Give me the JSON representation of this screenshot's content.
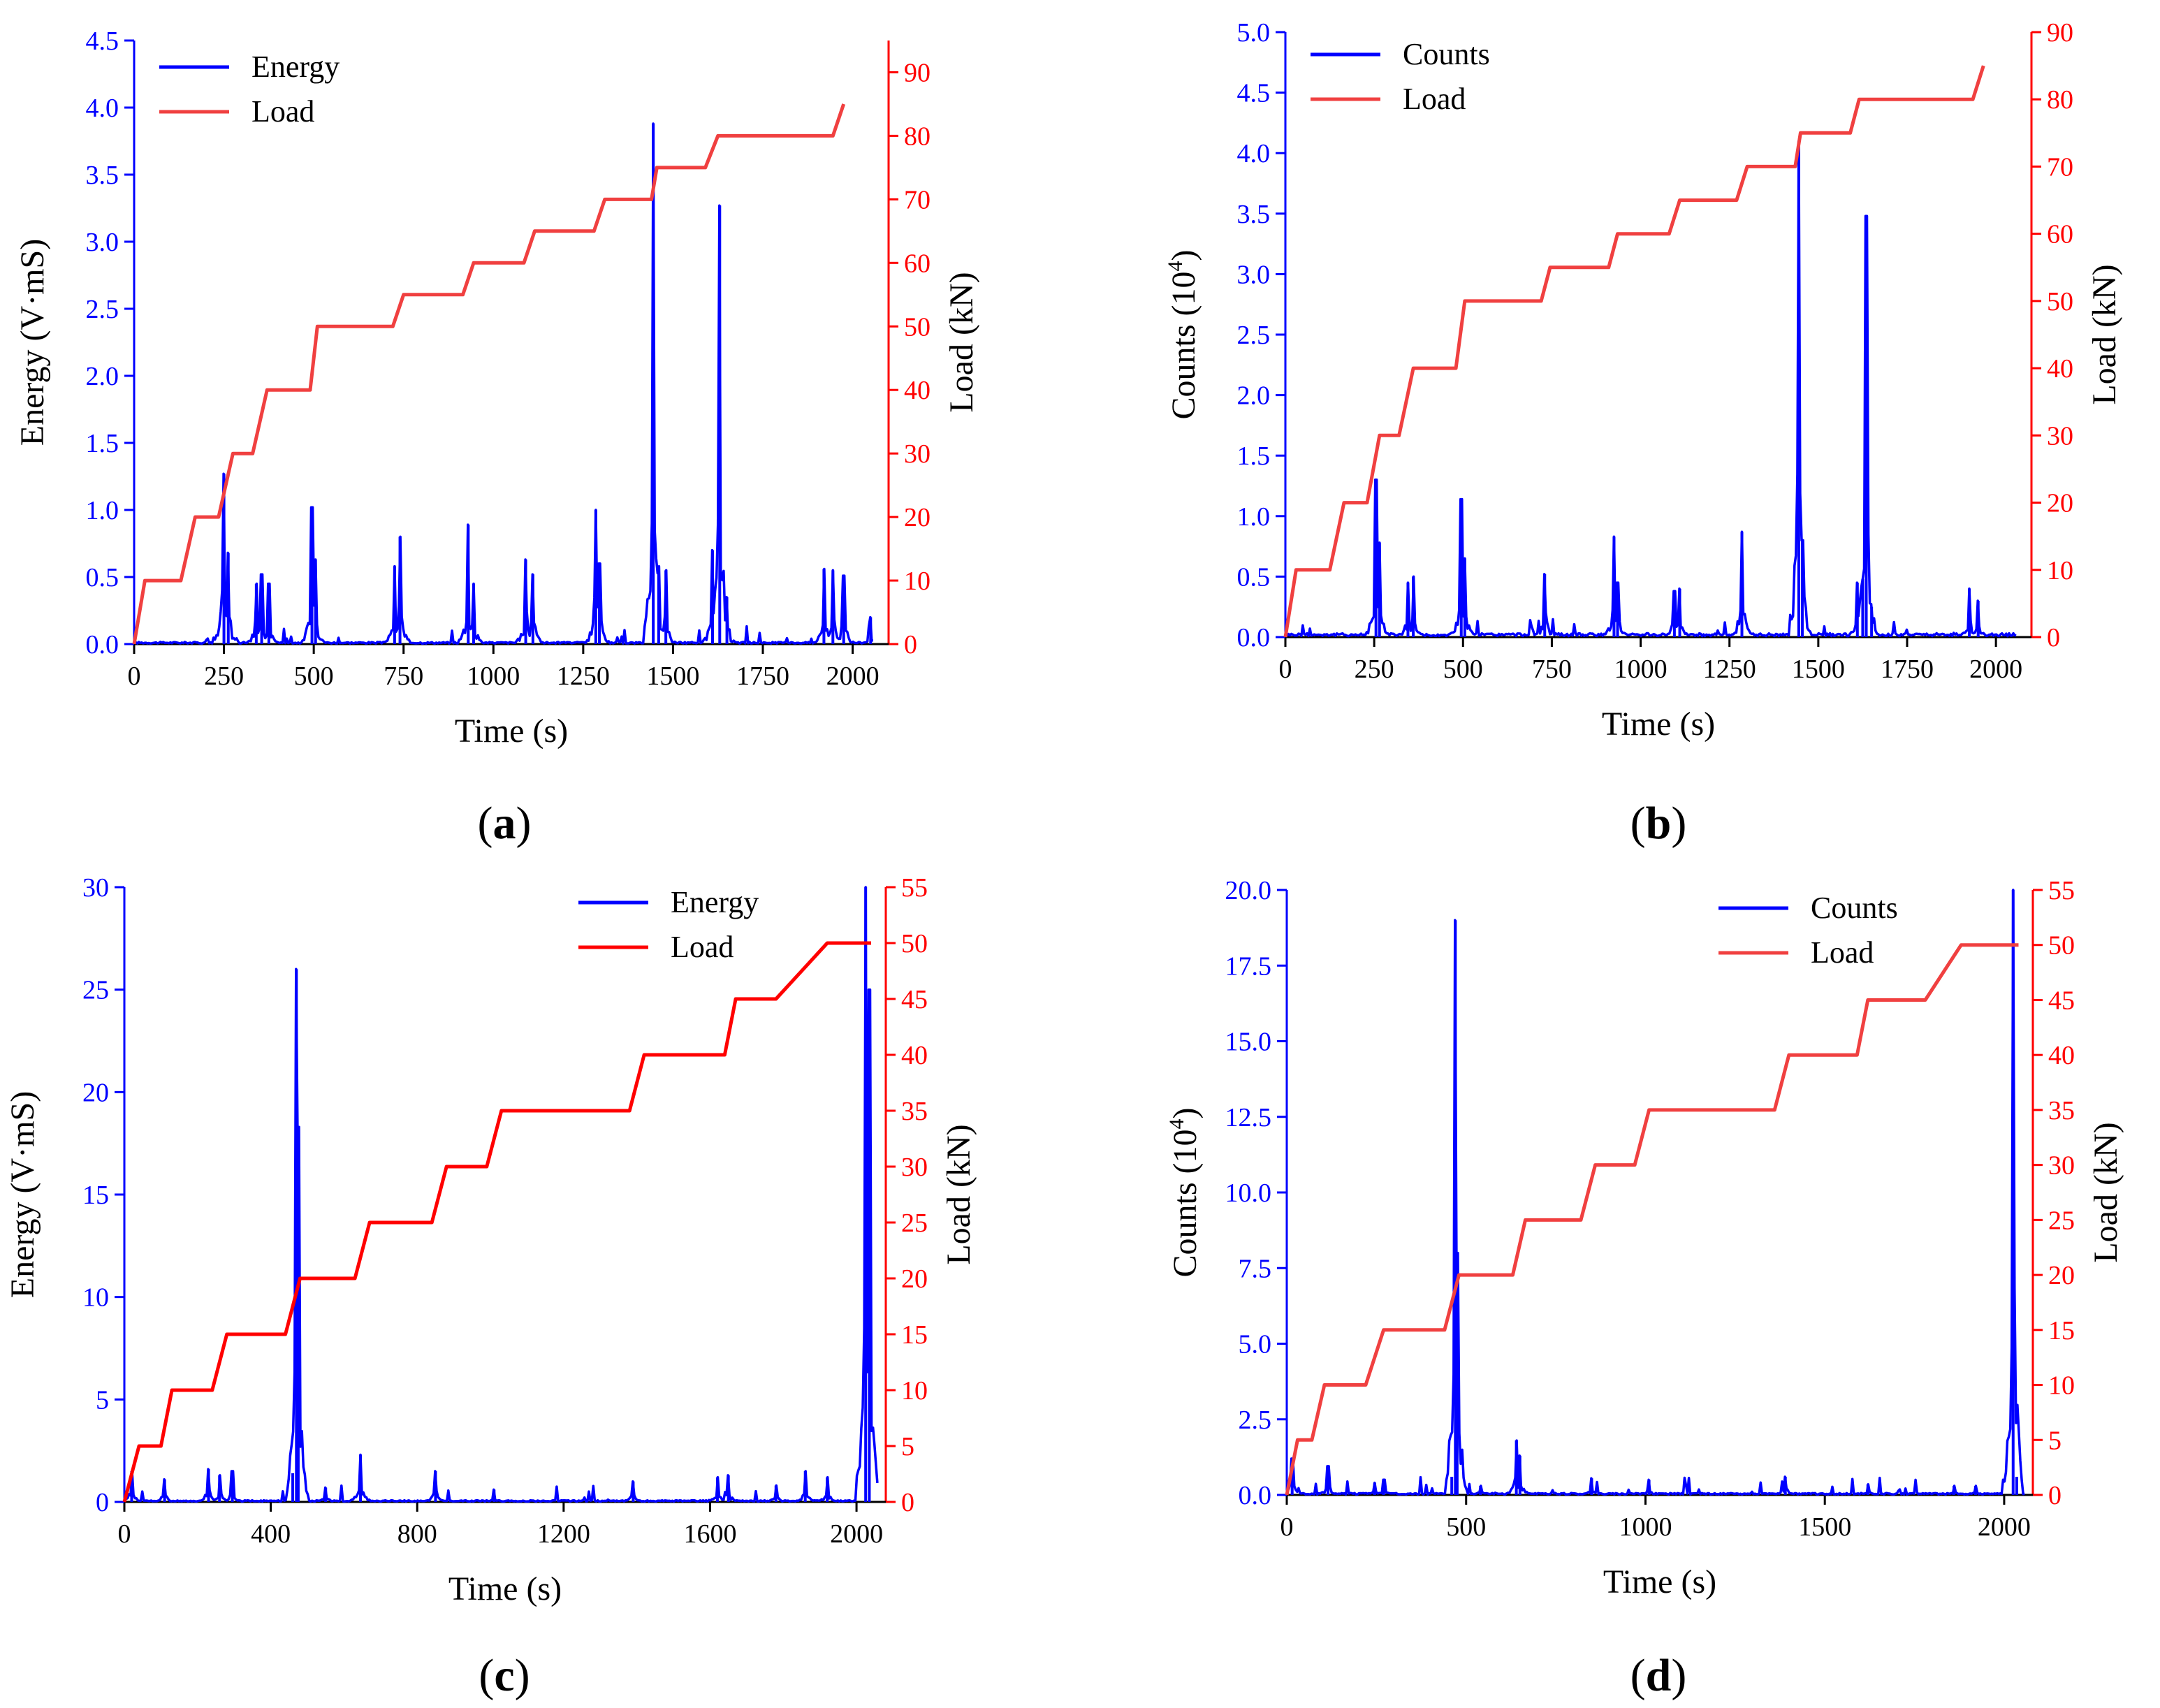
{
  "colors": {
    "energy_series": "#0000ff",
    "load_series_dark": "#ff0000",
    "load_series_light": "#f04040",
    "axis": "#000000",
    "left_axis": "#0000ff",
    "right_axis": "#ff0000"
  },
  "chart_data": [
    {
      "panel": "(a)",
      "type": "line",
      "xlabel": "Time (s)",
      "ylabel_left": "Energy (V·mS)",
      "ylabel_right": "Load (kN)",
      "xlim": [
        0,
        2100
      ],
      "ylim_left": [
        0,
        4.5
      ],
      "ylim_right": [
        0,
        95
      ],
      "xticks": [
        "0",
        "250",
        "500",
        "750",
        "1000",
        "1250",
        "1500",
        "1750",
        "2000"
      ],
      "yticks_left": [
        "0.0",
        "0.5",
        "1.0",
        "1.5",
        "2.0",
        "2.5",
        "3.0",
        "3.5",
        "4.0",
        "4.5"
      ],
      "yticks_right": [
        "0",
        "10",
        "20",
        "30",
        "40",
        "50",
        "60",
        "70",
        "80",
        "90"
      ],
      "legend": [
        "Energy",
        "Load"
      ],
      "legend_position": "top-left",
      "series": [
        {
          "name": "Energy",
          "axis": "left",
          "baseline": 0.01,
          "peaks": [
            [
              250,
              1.27
            ],
            [
              262,
              0.68
            ],
            [
              340,
              0.45
            ],
            [
              355,
              0.52
            ],
            [
              375,
              0.45
            ],
            [
              495,
              1.02
            ],
            [
              505,
              0.63
            ],
            [
              725,
              0.58
            ],
            [
              740,
              0.8
            ],
            [
              930,
              0.89
            ],
            [
              945,
              0.45
            ],
            [
              1090,
              0.63
            ],
            [
              1110,
              0.52
            ],
            [
              1285,
              1.0
            ],
            [
              1295,
              0.6
            ],
            [
              1445,
              3.88
            ],
            [
              1460,
              0.58
            ],
            [
              1480,
              0.55
            ],
            [
              1630,
              3.27
            ],
            [
              1610,
              0.7
            ],
            [
              1650,
              0.35
            ],
            [
              1920,
              0.56
            ],
            [
              1945,
              0.55
            ],
            [
              1975,
              0.51
            ],
            [
              2050,
              0.2
            ]
          ]
        },
        {
          "name": "Load",
          "axis": "right",
          "x": [
            0,
            30,
            130,
            170,
            235,
            275,
            330,
            370,
            490,
            510,
            720,
            750,
            915,
            945,
            1085,
            1115,
            1280,
            1310,
            1440,
            1455,
            1590,
            1625,
            1945,
            1975
          ],
          "y": [
            0,
            10,
            10,
            20,
            20,
            30,
            30,
            40,
            40,
            50,
            50,
            55,
            55,
            60,
            60,
            65,
            65,
            70,
            70,
            75,
            75,
            80,
            80,
            85
          ]
        }
      ]
    },
    {
      "panel": "(b)",
      "type": "line",
      "xlabel": "Time (s)",
      "ylabel_left": "Counts (10",
      "ylabel_left_sup": "4",
      "ylabel_left_close": ")",
      "ylabel_right": "Load (kN)",
      "xlim": [
        0,
        2100
      ],
      "ylim_left": [
        0,
        5.0
      ],
      "ylim_right": [
        0,
        90
      ],
      "xticks": [
        "0",
        "250",
        "500",
        "750",
        "1000",
        "1250",
        "1500",
        "1750",
        "2000"
      ],
      "yticks_left": [
        "0.0",
        "0.5",
        "1.0",
        "1.5",
        "2.0",
        "2.5",
        "3.0",
        "3.5",
        "4.0",
        "4.5",
        "5.0"
      ],
      "yticks_right": [
        "0",
        "10",
        "20",
        "30",
        "40",
        "50",
        "60",
        "70",
        "80",
        "90"
      ],
      "legend": [
        "Counts",
        "Load"
      ],
      "legend_position": "top-left",
      "series": [
        {
          "name": "Counts",
          "axis": "left",
          "baseline": 0.02,
          "peaks": [
            [
              255,
              1.3
            ],
            [
              265,
              0.78
            ],
            [
              345,
              0.45
            ],
            [
              360,
              0.5
            ],
            [
              495,
              1.14
            ],
            [
              505,
              0.65
            ],
            [
              730,
              0.52
            ],
            [
              925,
              0.83
            ],
            [
              935,
              0.45
            ],
            [
              1095,
              0.38
            ],
            [
              1110,
              0.4
            ],
            [
              1285,
              0.87
            ],
            [
              1445,
              4.1
            ],
            [
              1455,
              0.8
            ],
            [
              1610,
              0.45
            ],
            [
              1625,
              0.48
            ],
            [
              1635,
              3.48
            ],
            [
              1650,
              0.25
            ],
            [
              1925,
              0.4
            ],
            [
              1950,
              0.3
            ]
          ]
        },
        {
          "name": "Load",
          "axis": "right",
          "x": [
            0,
            30,
            125,
            165,
            230,
            265,
            320,
            360,
            480,
            505,
            720,
            745,
            910,
            935,
            1080,
            1110,
            1270,
            1300,
            1435,
            1450,
            1590,
            1615,
            1935,
            1965
          ],
          "y": [
            0,
            10,
            10,
            20,
            20,
            30,
            30,
            40,
            40,
            50,
            50,
            55,
            55,
            60,
            60,
            65,
            65,
            70,
            70,
            75,
            75,
            80,
            80,
            85
          ]
        }
      ]
    },
    {
      "panel": "(c)",
      "type": "line",
      "xlabel": "Time (s)",
      "ylabel_left": "Energy (V·mS)",
      "ylabel_right": "Load (kN)",
      "xlim": [
        0,
        2080
      ],
      "ylim_left": [
        0,
        30
      ],
      "ylim_right": [
        0,
        55
      ],
      "xticks": [
        "0",
        "400",
        "800",
        "1200",
        "1600",
        "2000"
      ],
      "yticks_left": [
        "0",
        "5",
        "10",
        "15",
        "20",
        "25",
        "30"
      ],
      "yticks_right": [
        "0",
        "5",
        "10",
        "15",
        "20",
        "25",
        "30",
        "35",
        "40",
        "45",
        "50",
        "55"
      ],
      "legend": [
        "Energy",
        "Load"
      ],
      "legend_position": "top-right",
      "series": [
        {
          "name": "Energy",
          "axis": "left",
          "baseline": 0.05,
          "peaks": [
            [
              20,
              1.5
            ],
            [
              110,
              1.1
            ],
            [
              230,
              1.6
            ],
            [
              260,
              1.3
            ],
            [
              295,
              1.5
            ],
            [
              460,
              1.4
            ],
            [
              470,
              26.0
            ],
            [
              475,
              18.3
            ],
            [
              550,
              0.7
            ],
            [
              645,
              2.3
            ],
            [
              850,
              1.5
            ],
            [
              1010,
              0.6
            ],
            [
              1390,
              1.0
            ],
            [
              1620,
              1.2
            ],
            [
              1650,
              1.3
            ],
            [
              1780,
              0.8
            ],
            [
              1860,
              1.5
            ],
            [
              1920,
              1.2
            ],
            [
              2025,
              30.0
            ],
            [
              2035,
              25.0
            ]
          ]
        },
        {
          "name": "Load",
          "axis": "right",
          "x": [
            0,
            40,
            100,
            130,
            240,
            280,
            440,
            480,
            630,
            670,
            840,
            880,
            990,
            1030,
            1380,
            1420,
            1640,
            1670,
            1780,
            1920,
            2040
          ],
          "y": [
            0,
            5,
            5,
            10,
            10,
            15,
            15,
            20,
            20,
            25,
            25,
            30,
            30,
            35,
            35,
            40,
            40,
            45,
            45,
            50,
            50
          ]
        }
      ]
    },
    {
      "panel": "(d)",
      "type": "line",
      "xlabel": "Time (s)",
      "ylabel_left": "Counts (10",
      "ylabel_left_sup": "4",
      "ylabel_left_close": ")",
      "ylabel_right": "Load (kN)",
      "xlim": [
        0,
        2080
      ],
      "ylim_left": [
        0,
        20.0
      ],
      "ylim_right": [
        0,
        55
      ],
      "xticks": [
        "0",
        "500",
        "1000",
        "1500",
        "2000"
      ],
      "yticks_left": [
        "0.0",
        "2.5",
        "5.0",
        "7.5",
        "10.0",
        "12.5",
        "15.0",
        "17.5",
        "20.0"
      ],
      "yticks_right": [
        "0",
        "5",
        "10",
        "15",
        "20",
        "25",
        "30",
        "35",
        "40",
        "45",
        "50",
        "55"
      ],
      "legend": [
        "Counts",
        "Load"
      ],
      "legend_position": "top-right",
      "series": [
        {
          "name": "Counts",
          "axis": "left",
          "baseline": 0.04,
          "peaks": [
            [
              15,
              1.2
            ],
            [
              115,
              0.95
            ],
            [
              245,
              0.4
            ],
            [
              270,
              0.5
            ],
            [
              460,
              0.6
            ],
            [
              470,
              19.0
            ],
            [
              475,
              8.0
            ],
            [
              540,
              0.3
            ],
            [
              640,
              1.8
            ],
            [
              650,
              1.3
            ],
            [
              850,
              0.55
            ],
            [
              1010,
              0.5
            ],
            [
              1390,
              0.6
            ],
            [
              1620,
              0.35
            ],
            [
              1860,
              0.3
            ],
            [
              1920,
              0.3
            ],
            [
              2025,
              20.0
            ],
            [
              2035,
              0.6
            ]
          ]
        },
        {
          "name": "Load",
          "axis": "right",
          "x": [
            0,
            30,
            70,
            105,
            220,
            270,
            440,
            480,
            630,
            665,
            820,
            860,
            970,
            1010,
            1360,
            1400,
            1590,
            1620,
            1780,
            1880,
            2040
          ],
          "y": [
            0,
            5,
            5,
            10,
            10,
            15,
            15,
            20,
            20,
            25,
            25,
            30,
            30,
            35,
            35,
            40,
            40,
            45,
            45,
            50,
            50
          ]
        }
      ]
    }
  ]
}
